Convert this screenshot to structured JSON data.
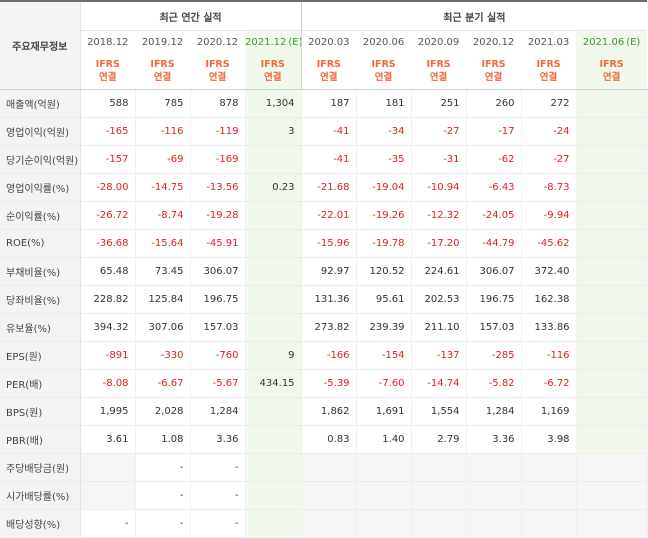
{
  "header": {
    "label": "주요재무정보",
    "annual_title": "최근 연간 실적",
    "quarter_title": "최근 분기 실적",
    "columns": [
      {
        "date": "2018.12",
        "badge1": "IFRS",
        "badge2": "연결",
        "est": false
      },
      {
        "date": "2019.12",
        "badge1": "IFRS",
        "badge2": "연결",
        "est": false
      },
      {
        "date": "2020.12",
        "badge1": "IFRS",
        "badge2": "연결",
        "est": false
      },
      {
        "date": "2021.12",
        "est_mark": "(E)",
        "badge1": "IFRS",
        "badge2": "연결",
        "est": true
      },
      {
        "date": "2020.03",
        "badge1": "IFRS",
        "badge2": "연결",
        "est": false
      },
      {
        "date": "2020.06",
        "badge1": "IFRS",
        "badge2": "연결",
        "est": false
      },
      {
        "date": "2020.09",
        "badge1": "IFRS",
        "badge2": "연결",
        "est": false
      },
      {
        "date": "2020.12",
        "badge1": "IFRS",
        "badge2": "연결",
        "est": false
      },
      {
        "date": "2021.03",
        "badge1": "IFRS",
        "badge2": "연결",
        "est": false
      },
      {
        "date": "2021.06",
        "est_mark": "(E)",
        "badge1": "IFRS",
        "badge2": "연결",
        "est": true
      }
    ]
  },
  "rows": [
    {
      "label": "매출액(억원)",
      "values": [
        "588",
        "785",
        "878",
        "1,304",
        "187",
        "181",
        "251",
        "260",
        "272",
        ""
      ],
      "group_start": true
    },
    {
      "label": "영업이익(억원)",
      "values": [
        "-165",
        "-116",
        "-119",
        "3",
        "-41",
        "-34",
        "-27",
        "-17",
        "-24",
        ""
      ]
    },
    {
      "label": "당기순이익(억원)",
      "values": [
        "-157",
        "-69",
        "-169",
        "",
        "-41",
        "-35",
        "-31",
        "-62",
        "-27",
        ""
      ]
    },
    {
      "label": "영업이익률(%)",
      "values": [
        "-28.00",
        "-14.75",
        "-13.56",
        "0.23",
        "-21.68",
        "-19.04",
        "-10.94",
        "-6.43",
        "-8.73",
        ""
      ],
      "group_start": true
    },
    {
      "label": "순이익률(%)",
      "values": [
        "-26.72",
        "-8.74",
        "-19.28",
        "",
        "-22.01",
        "-19.26",
        "-12.32",
        "-24.05",
        "-9.94",
        ""
      ]
    },
    {
      "label": "ROE(%)",
      "values": [
        "-36.68",
        "-15.64",
        "-45.91",
        "",
        "-15.96",
        "-19.78",
        "-17.20",
        "-44.79",
        "-45.62",
        ""
      ]
    },
    {
      "label": "부채비율(%)",
      "values": [
        "65.48",
        "73.45",
        "306.07",
        "",
        "92.97",
        "120.52",
        "224.61",
        "306.07",
        "372.40",
        ""
      ],
      "group_start": true
    },
    {
      "label": "당좌비율(%)",
      "values": [
        "228.82",
        "125.84",
        "196.75",
        "",
        "131.36",
        "95.61",
        "202.53",
        "196.75",
        "162.38",
        ""
      ]
    },
    {
      "label": "유보율(%)",
      "values": [
        "394.32",
        "307.06",
        "157.03",
        "",
        "273.82",
        "239.39",
        "211.10",
        "157.03",
        "133.86",
        ""
      ]
    },
    {
      "label": "EPS(원)",
      "values": [
        "-891",
        "-330",
        "-760",
        "9",
        "-166",
        "-154",
        "-137",
        "-285",
        "-116",
        ""
      ],
      "group_start": true
    },
    {
      "label": "PER(배)",
      "values": [
        "-8.08",
        "-6.67",
        "-5.67",
        "434.15",
        "-5.39",
        "-7.60",
        "-14.74",
        "-5.82",
        "-6.72",
        ""
      ]
    },
    {
      "label": "BPS(원)",
      "values": [
        "1,995",
        "2,028",
        "1,284",
        "",
        "1,862",
        "1,691",
        "1,554",
        "1,284",
        "1,169",
        ""
      ]
    },
    {
      "label": "PBR(배)",
      "values": [
        "3.61",
        "1.08",
        "3.36",
        "",
        "0.83",
        "1.40",
        "2.79",
        "3.36",
        "3.98",
        ""
      ]
    },
    {
      "label": "주당배당금(원)",
      "values": [
        "",
        "-",
        "-",
        "",
        "",
        "",
        "",
        "",
        "",
        ""
      ],
      "group_start": true,
      "empty_cells": [
        0,
        4,
        5,
        6,
        7,
        8,
        9
      ]
    },
    {
      "label": "시가배당률(%)",
      "values": [
        "",
        "-",
        "-",
        "",
        "",
        "",
        "",
        "",
        "",
        ""
      ],
      "empty_cells": [
        0,
        4,
        5,
        6,
        7,
        8,
        9
      ]
    },
    {
      "label": "배당성향(%)",
      "values": [
        "-",
        "-",
        "-",
        "",
        "",
        "",
        "",
        "",
        "",
        ""
      ],
      "empty_cells": [
        4,
        5,
        6,
        7,
        8,
        9
      ]
    }
  ]
}
